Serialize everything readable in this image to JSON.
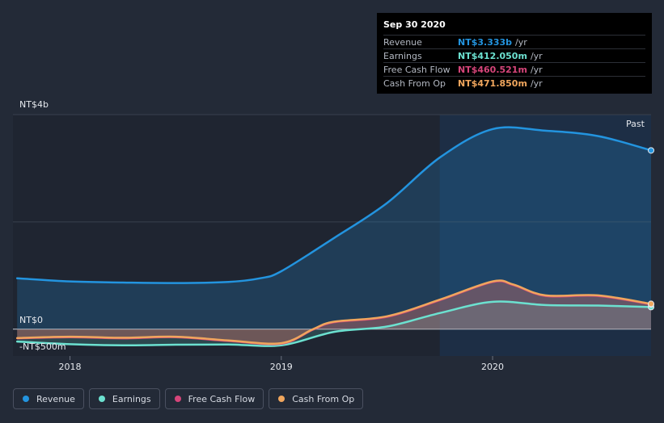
{
  "tooltip": {
    "date": "Sep 30 2020",
    "rows": [
      {
        "label": "Revenue",
        "value": "NT$3.333b",
        "unit": "/yr",
        "color": "#2394df"
      },
      {
        "label": "Earnings",
        "value": "NT$412.050m",
        "unit": "/yr",
        "color": "#6ce1d0"
      },
      {
        "label": "Free Cash Flow",
        "value": "NT$460.521m",
        "unit": "/yr",
        "color": "#d6457a"
      },
      {
        "label": "Cash From Op",
        "value": "NT$471.850m",
        "unit": "/yr",
        "color": "#f0a65d"
      }
    ]
  },
  "legend": [
    {
      "label": "Revenue",
      "color": "#2394df"
    },
    {
      "label": "Earnings",
      "color": "#6ce1d0"
    },
    {
      "label": "Free Cash Flow",
      "color": "#d6457a"
    },
    {
      "label": "Cash From Op",
      "color": "#f0a65d"
    }
  ],
  "chart_data": {
    "type": "area",
    "title": "",
    "xlabel": "",
    "ylabel": "",
    "y_axis_labels": {
      "top": "NT$4b",
      "zero": "NT$0",
      "bottom": "-NT$500m"
    },
    "x_tick_labels": [
      "2018",
      "2019",
      "2020"
    ],
    "x_ticks": [
      2018.0,
      2019.0,
      2020.0
    ],
    "xlim": [
      2017.73,
      2020.75
    ],
    "ylim": [
      -500,
      4000
    ],
    "past_label": "Past",
    "past_start": 2019.75,
    "series": [
      {
        "name": "Revenue",
        "color": "#2394df",
        "points": [
          [
            2017.75,
            950
          ],
          [
            2018.0,
            890
          ],
          [
            2018.25,
            870
          ],
          [
            2018.5,
            860
          ],
          [
            2018.75,
            880
          ],
          [
            2018.9,
            950
          ],
          [
            2019.0,
            1080
          ],
          [
            2019.25,
            1700
          ],
          [
            2019.5,
            2350
          ],
          [
            2019.75,
            3200
          ],
          [
            2020.0,
            3730
          ],
          [
            2020.25,
            3700
          ],
          [
            2020.5,
            3600
          ],
          [
            2020.75,
            3333
          ]
        ]
      },
      {
        "name": "Earnings",
        "color": "#6ce1d0",
        "points": [
          [
            2017.75,
            -230
          ],
          [
            2018.0,
            -280
          ],
          [
            2018.25,
            -300
          ],
          [
            2018.5,
            -290
          ],
          [
            2018.75,
            -285
          ],
          [
            2019.0,
            -300
          ],
          [
            2019.25,
            -50
          ],
          [
            2019.5,
            50
          ],
          [
            2019.75,
            300
          ],
          [
            2020.0,
            510
          ],
          [
            2020.25,
            450
          ],
          [
            2020.5,
            440
          ],
          [
            2020.75,
            412
          ]
        ]
      },
      {
        "name": "Free Cash Flow",
        "color": "#d6457a",
        "points": [
          [
            2017.75,
            -170
          ],
          [
            2018.0,
            -150
          ],
          [
            2018.25,
            -170
          ],
          [
            2018.5,
            -150
          ],
          [
            2018.75,
            -220
          ],
          [
            2019.0,
            -270
          ],
          [
            2019.15,
            -10
          ],
          [
            2019.25,
            130
          ],
          [
            2019.5,
            230
          ],
          [
            2019.75,
            540
          ],
          [
            2020.0,
            880
          ],
          [
            2020.1,
            820
          ],
          [
            2020.25,
            620
          ],
          [
            2020.5,
            620
          ],
          [
            2020.75,
            461
          ]
        ]
      },
      {
        "name": "Cash From Op",
        "color": "#f0a65d",
        "points": [
          [
            2017.75,
            -165
          ],
          [
            2018.0,
            -140
          ],
          [
            2018.25,
            -160
          ],
          [
            2018.5,
            -140
          ],
          [
            2018.75,
            -210
          ],
          [
            2019.0,
            -260
          ],
          [
            2019.15,
            0
          ],
          [
            2019.25,
            140
          ],
          [
            2019.5,
            240
          ],
          [
            2019.75,
            550
          ],
          [
            2020.0,
            890
          ],
          [
            2020.1,
            830
          ],
          [
            2020.25,
            630
          ],
          [
            2020.5,
            630
          ],
          [
            2020.75,
            472
          ]
        ]
      }
    ]
  }
}
